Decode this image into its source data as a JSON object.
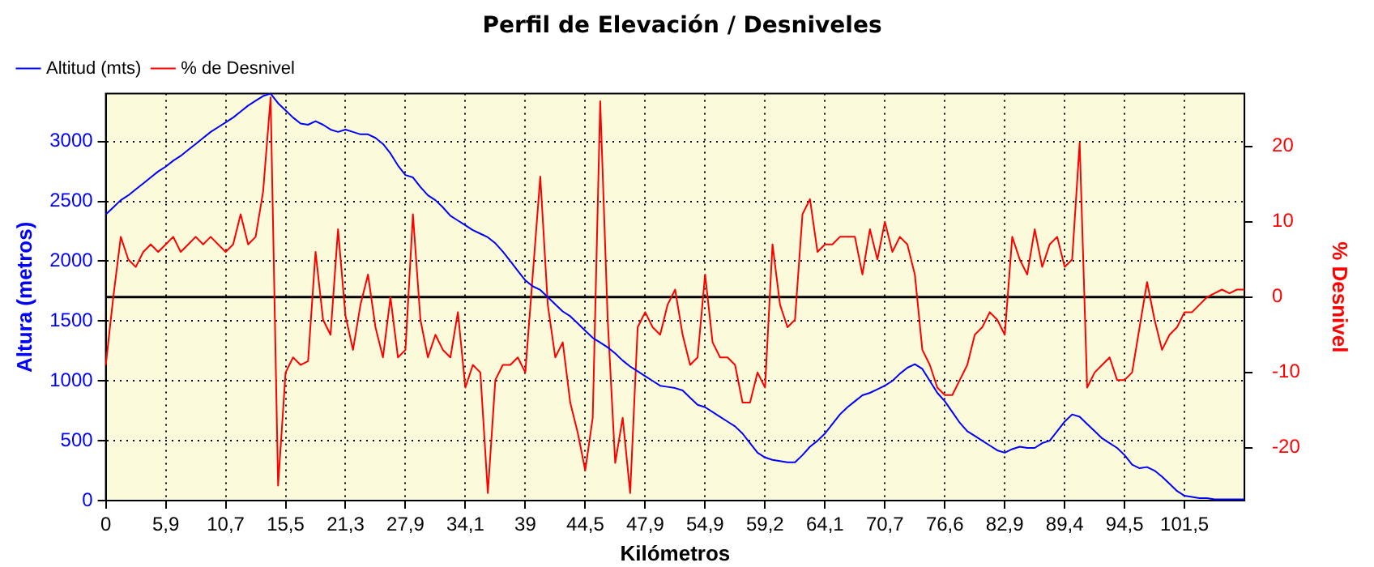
{
  "chart_data": {
    "type": "line",
    "title": "Perfil de Elevación / Desniveles",
    "xlabel": "Kilómetros",
    "ylabel": "Altura (metros)",
    "y2label": "% Desnivel",
    "categories": [
      "0",
      null,
      null,
      null,
      null,
      null,
      null,
      null,
      "5,9",
      null,
      null,
      null,
      null,
      null,
      null,
      null,
      "10,7",
      null,
      null,
      null,
      null,
      null,
      null,
      null,
      "15,5",
      null,
      null,
      null,
      null,
      null,
      null,
      null,
      "21,3",
      null,
      null,
      null,
      null,
      null,
      null,
      null,
      "27,9",
      null,
      null,
      null,
      null,
      null,
      null,
      null,
      "34,1",
      null,
      null,
      null,
      null,
      null,
      null,
      null,
      "39",
      null,
      null,
      null,
      null,
      null,
      null,
      null,
      "44,5",
      null,
      null,
      null,
      null,
      null,
      null,
      null,
      "47,9",
      null,
      null,
      null,
      null,
      null,
      null,
      null,
      "54,9",
      null,
      null,
      null,
      null,
      null,
      null,
      null,
      "59,2",
      null,
      null,
      null,
      null,
      null,
      null,
      null,
      "64,1",
      null,
      null,
      null,
      null,
      null,
      null,
      null,
      "70,7",
      null,
      null,
      null,
      null,
      null,
      null,
      null,
      "76,6",
      null,
      null,
      null,
      null,
      null,
      null,
      null,
      "82,9",
      null,
      null,
      null,
      null,
      null,
      null,
      null,
      "89,4",
      null,
      null,
      null,
      null,
      null,
      null,
      null,
      "94,5",
      null,
      null,
      null,
      null,
      null,
      null,
      null,
      "101,5",
      null,
      null,
      null,
      null,
      null,
      null,
      null,
      null
    ],
    "series": [
      {
        "name": "Altitud (mts)",
        "color": "#0000ff",
        "values": [
          2390,
          2450,
          2510,
          2550,
          2600,
          2650,
          2700,
          2750,
          2790,
          2840,
          2880,
          2930,
          2980,
          3030,
          3080,
          3120,
          3160,
          3200,
          3250,
          3300,
          3340,
          3380,
          3400,
          3320,
          3260,
          3200,
          3150,
          3140,
          3170,
          3140,
          3100,
          3080,
          3100,
          3080,
          3060,
          3060,
          3030,
          2980,
          2900,
          2800,
          2720,
          2700,
          2620,
          2550,
          2510,
          2450,
          2380,
          2340,
          2300,
          2260,
          2230,
          2200,
          2150,
          2080,
          2000,
          1920,
          1840,
          1790,
          1760,
          1700,
          1640,
          1580,
          1540,
          1480,
          1420,
          1360,
          1320,
          1280,
          1230,
          1170,
          1120,
          1080,
          1040,
          1000,
          960,
          950,
          940,
          920,
          860,
          800,
          780,
          740,
          700,
          660,
          620,
          560,
          480,
          400,
          360,
          340,
          330,
          320,
          320,
          380,
          450,
          500,
          560,
          640,
          720,
          780,
          830,
          880,
          900,
          930,
          960,
          1000,
          1060,
          1110,
          1140,
          1100,
          1000,
          900,
          830,
          740,
          650,
          580,
          540,
          500,
          460,
          420,
          400,
          430,
          450,
          440,
          440,
          480,
          500,
          580,
          660,
          720,
          700,
          640,
          580,
          520,
          480,
          440,
          380,
          300,
          270,
          280,
          250,
          200,
          140,
          80,
          40,
          30,
          20,
          20,
          10,
          10,
          10,
          10,
          10
        ]
      },
      {
        "name": "% de Desnivel",
        "color": "#ff0000",
        "axis": "y2",
        "values": [
          -9,
          0,
          8,
          5,
          4,
          6,
          7,
          6,
          7,
          8,
          6,
          7,
          8,
          7,
          8,
          7,
          6,
          7,
          11,
          7,
          8,
          14,
          26.5,
          -25,
          -10,
          -8,
          -9,
          -8.5,
          6,
          -3,
          -5,
          9,
          -2.5,
          -7,
          -1,
          3,
          -4,
          -8,
          0,
          -8,
          -7,
          11,
          -3,
          -8,
          -5,
          -7,
          -8,
          -2,
          -12,
          -9,
          -10,
          -26,
          -11,
          -9,
          -9,
          -8,
          -10,
          3,
          16,
          -1,
          -8,
          -6,
          -14,
          -18,
          -23,
          -16,
          26,
          -3,
          -22,
          -16,
          -26,
          -4,
          -2,
          -4,
          -5,
          -1,
          1,
          -5,
          -9,
          -8,
          3,
          -6,
          -8,
          -8,
          -9,
          -14,
          -14,
          -10,
          -12,
          7,
          -1,
          -4,
          -3,
          11,
          13,
          6,
          7,
          7,
          8,
          8,
          8,
          3,
          9,
          5,
          10,
          6,
          8,
          7,
          3,
          -7,
          -9,
          -12,
          -13,
          -13,
          -11,
          -9,
          -5,
          -4,
          -2,
          -3,
          -5,
          8,
          5,
          3,
          9,
          4,
          7,
          8,
          4,
          5,
          20.5,
          -12,
          -10,
          -9,
          -8,
          -11,
          -11,
          -10,
          -4,
          2,
          -3,
          -7,
          -5,
          -4,
          -2,
          -2,
          -1,
          0,
          0.5,
          1,
          0.5,
          1,
          1
        ]
      }
    ],
    "ylim": [
      0,
      3400
    ],
    "yticks": [
      0,
      500,
      1000,
      1500,
      2000,
      2500,
      3000
    ],
    "y2lim": [
      -27,
      27
    ],
    "y2ticks": [
      -20,
      -10,
      0,
      10,
      20
    ],
    "ref_lines": [
      {
        "axis": "y2",
        "value": 0,
        "color": "#000000"
      }
    ],
    "grid": true,
    "legend": "top left",
    "marker": "none",
    "line_style": "solid"
  }
}
